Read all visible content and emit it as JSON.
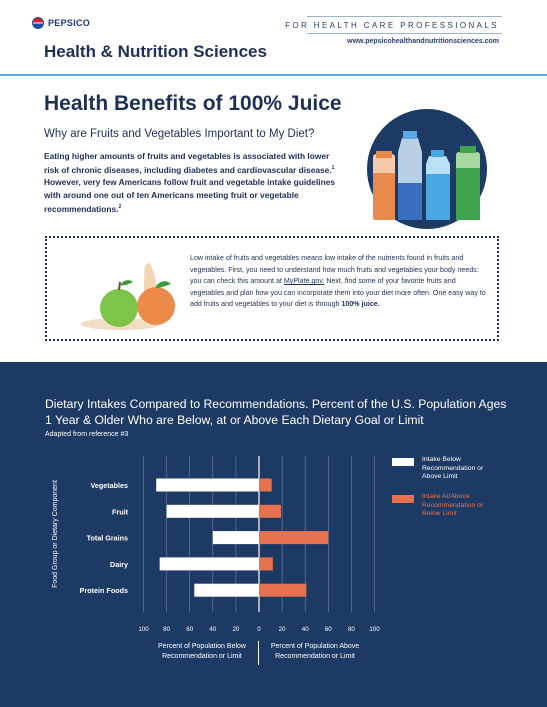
{
  "header": {
    "logo_text": "PEPSICO",
    "brand_title": "Health & Nutrition Sciences",
    "audience": "FOR HEALTH CARE PROFESSIONALS",
    "website": "www.pepsicohealthandnutritionsciences.com"
  },
  "hero": {
    "title": "Health Benefits of 100% Juice",
    "subtitle": "Why are Fruits and Vegetables Important to My Diet?",
    "intro_part1": "Eating higher amounts of fruits and vegetables is associated with lower risk of chronic diseases, including diabetes and cardiovascular disease.",
    "intro_ref1": "1",
    "intro_part2": " However, very few Americans follow fruit and vegetable intake guidelines with around one out of ten Americans meeting fruit or vegetable recommendations.",
    "intro_ref2": "2"
  },
  "callout": {
    "text_part1": "Low intake of fruits and vegetables means low intake of the nutrients found in fruits and vegetables. First, you need to understand how much fruits and vegetables your body needs: you can check this amount at ",
    "link_text": "MyPlate.gov.",
    "text_part2": " Next, find some of your favorite fruits and vegetables and plan how you can incorporate them into your diet more often. One easy way to add fruits and vegetables to your diet is through ",
    "bold_text": "100% juice."
  },
  "colors": {
    "navy": "#1c3a63",
    "below_bar": "#ffffff",
    "above_bar": "#e5714f",
    "accent_rule": "#5aa9e0"
  },
  "chart_data": {
    "type": "bar",
    "title": "Dietary Intakes Compared to Recommendations. Percent of the U.S. Population Ages 1 Year & Older Who are Below, at or Above Each Dietary Goal or Limit",
    "subtitle": "Adapted from reference #3",
    "ylabel": "Food Group or Dietary Component",
    "xlabel_left": "Percent of Population Below Recommendation or Limit",
    "xlabel_right": "Percent of Population Above Recommendation or Limit",
    "categories": [
      "Vegetables",
      "Fruit",
      "Total Grains",
      "Dairy",
      "Protein Foods"
    ],
    "series": [
      {
        "name": "Intake Below Recommendation or Above Limit",
        "color": "#ffffff",
        "values": [
          89,
          80,
          40,
          86,
          56
        ]
      },
      {
        "name": "Intake At/Above Recommendation or Below Limit",
        "color": "#e5714f",
        "values": [
          11,
          19,
          60,
          12,
          41
        ]
      }
    ],
    "xticks": [
      "100",
      "80",
      "60",
      "40",
      "20",
      "0",
      "20",
      "40",
      "60",
      "80",
      "100"
    ],
    "xlim": [
      -100,
      100
    ],
    "grid": true,
    "legend_position": "right"
  }
}
